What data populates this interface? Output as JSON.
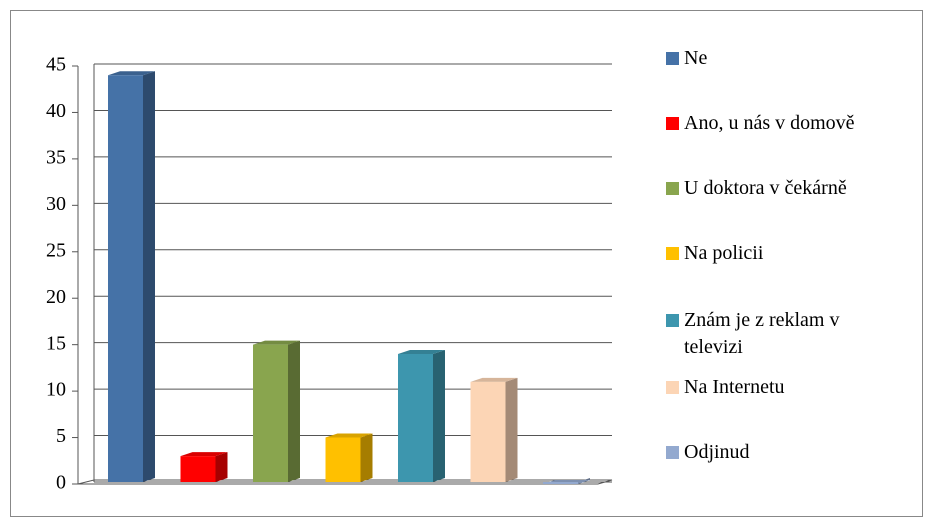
{
  "chart_data": {
    "type": "bar3d",
    "categories": [
      "Ne",
      "Ano, u nás v domově",
      "U doktora v čekárně",
      "Na policii",
      "Znám je z reklam v televizi",
      "Na Internetu",
      "Odjinud"
    ],
    "values": [
      44,
      3,
      15,
      5,
      14,
      11,
      0
    ],
    "colors": [
      "#4572a7",
      "#ff0000",
      "#89a54e",
      "#ffc000",
      "#3d96ae",
      "#fcd5b5",
      "#93a9cf"
    ],
    "ylim": [
      0,
      45
    ],
    "yticks": [
      0,
      5,
      10,
      15,
      20,
      25,
      30,
      35,
      40,
      45
    ],
    "grid": true,
    "legend": "right"
  }
}
